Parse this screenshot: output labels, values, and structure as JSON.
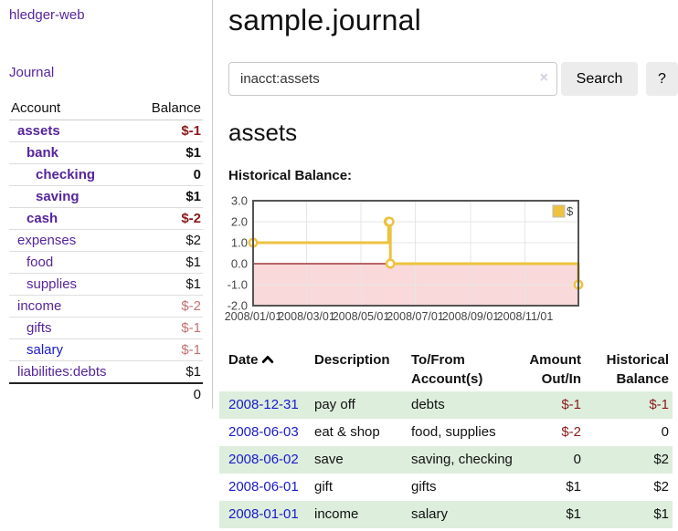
{
  "app": {
    "title": "hledger-web"
  },
  "sidebar": {
    "nav": {
      "journal_label": "Journal"
    },
    "accounts_table": {
      "headers": {
        "account": "Account",
        "balance": "Balance"
      },
      "rows": [
        {
          "account": "assets",
          "balance": "$-1",
          "depth": 0,
          "selected": true
        },
        {
          "account": "bank",
          "balance": "$1",
          "depth": 1,
          "selected": true
        },
        {
          "account": "checking",
          "balance": "0",
          "depth": 2,
          "selected": true
        },
        {
          "account": "saving",
          "balance": "$1",
          "depth": 2,
          "selected": true
        },
        {
          "account": "cash",
          "balance": "$-2",
          "depth": 1,
          "selected": true
        },
        {
          "account": "expenses",
          "balance": "$2",
          "depth": 0,
          "selected": false
        },
        {
          "account": "food",
          "balance": "$1",
          "depth": 1,
          "selected": false
        },
        {
          "account": "supplies",
          "balance": "$1",
          "depth": 1,
          "selected": false
        },
        {
          "account": "income",
          "balance": "$-2",
          "depth": 0,
          "selected": false
        },
        {
          "account": "gifts",
          "balance": "$-1",
          "depth": 1,
          "selected": false
        },
        {
          "account": "salary",
          "balance": "$-1",
          "depth": 1,
          "selected": false,
          "blue_link": true
        },
        {
          "account": "liabilities:debts",
          "balance": "$1",
          "depth": 0,
          "selected": false
        }
      ],
      "total": "0"
    }
  },
  "main": {
    "title": "sample.journal",
    "search": {
      "value": "inacct:assets",
      "clear_icon": "×",
      "button_label": "Search",
      "help_label": "?"
    },
    "account_heading": "assets",
    "chart_label": "Historical Balance:"
  },
  "chart_data": {
    "type": "line",
    "title": "Historical Balance",
    "step": true,
    "legend": [
      {
        "label": "$",
        "color": "#edc240"
      }
    ],
    "legend_position": "top-right",
    "grid": true,
    "ylim": [
      -2,
      3
    ],
    "y_ticks": [
      3.0,
      2.0,
      1.0,
      0.0,
      -1.0,
      -2.0
    ],
    "x_range": [
      "2008-01-01",
      "2008-12-31"
    ],
    "x_ticks": [
      {
        "date": "2008-01-01",
        "label": "2008/01/01"
      },
      {
        "date": "2008-03-01",
        "label": "2008/03/01"
      },
      {
        "date": "2008-05-01",
        "label": "2008/05/01"
      },
      {
        "date": "2008-07-01",
        "label": "2008/07/01"
      },
      {
        "date": "2008-09-01",
        "label": "2008/09/01"
      },
      {
        "date": "2008-11-01",
        "label": "2008/11/01"
      }
    ],
    "points": [
      {
        "date": "2008-01-01",
        "value": 1
      },
      {
        "date": "2008-06-01",
        "value": 2
      },
      {
        "date": "2008-06-02",
        "value": 2
      },
      {
        "date": "2008-06-03",
        "value": 0
      },
      {
        "date": "2008-12-31",
        "value": -1
      }
    ]
  },
  "transactions_table": {
    "headers": {
      "date": "Date",
      "sort_indicator": "ascending",
      "description": "Description",
      "accounts": "To/From Account(s)",
      "amount": "Amount Out/In",
      "balance": "Historical Balance"
    },
    "rows": [
      {
        "date": "2008-12-31",
        "description": "pay off",
        "accounts": "debts",
        "amount": "$-1",
        "balance": "$-1"
      },
      {
        "date": "2008-06-03",
        "description": "eat & shop",
        "accounts": "food, supplies",
        "amount": "$-2",
        "balance": "0"
      },
      {
        "date": "2008-06-02",
        "description": "save",
        "accounts": "saving, checking",
        "amount": "0",
        "balance": "$2"
      },
      {
        "date": "2008-06-01",
        "description": "gift",
        "accounts": "gifts",
        "amount": "$1",
        "balance": "$2"
      },
      {
        "date": "2008-01-01",
        "description": "income",
        "accounts": "salary",
        "amount": "$1",
        "balance": "$1"
      }
    ]
  },
  "colors": {
    "link_purple": "#56259c",
    "link_blue": "#1a1acb",
    "negative_strong": "#8b1a1a",
    "negative_soft": "#c07272",
    "row_stripe_green": "#ddeedd",
    "chart_series_gold": "#edc240",
    "chart_negative_fill": "#f9d9d9",
    "chart_zero_line": "#8f1010"
  }
}
